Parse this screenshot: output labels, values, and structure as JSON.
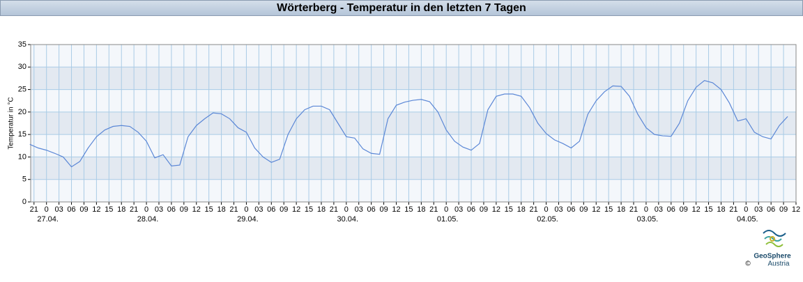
{
  "chart_data": {
    "type": "line",
    "title": "Wörterberg - Temperatur in den letzten 7 Tagen",
    "y_label": "Temperatur in °C",
    "color": "#5b87d6",
    "grid": true,
    "ylim": [
      0,
      35
    ],
    "yticks": [
      0,
      5,
      10,
      15,
      20,
      25,
      30,
      35
    ],
    "xlim": [
      -3.8,
      180
    ],
    "xticks": [
      {
        "value": -3,
        "label": "21"
      },
      0,
      {
        "value": 3,
        "label": "03"
      },
      {
        "value": 6,
        "label": "06"
      },
      {
        "value": 9,
        "label": "09"
      },
      {
        "value": 12,
        "label": "12"
      },
      {
        "value": 15,
        "label": "15"
      },
      {
        "value": 18,
        "label": "18"
      },
      {
        "value": 21,
        "label": "21"
      },
      {
        "value": 24,
        "label": "0"
      },
      {
        "value": 27,
        "label": "03"
      },
      {
        "value": 30,
        "label": "06"
      },
      {
        "value": 33,
        "label": "09"
      },
      {
        "value": 36,
        "label": "12"
      },
      {
        "value": 39,
        "label": "15"
      },
      {
        "value": 42,
        "label": "18"
      },
      {
        "value": 45,
        "label": "21"
      },
      {
        "value": 48,
        "label": "0"
      },
      {
        "value": 51,
        "label": "03"
      },
      {
        "value": 54,
        "label": "06"
      },
      {
        "value": 57,
        "label": "09"
      },
      {
        "value": 60,
        "label": "12"
      },
      {
        "value": 63,
        "label": "15"
      },
      {
        "value": 66,
        "label": "18"
      },
      {
        "value": 69,
        "label": "21"
      },
      {
        "value": 72,
        "label": "0"
      },
      {
        "value": 75,
        "label": "03"
      },
      {
        "value": 78,
        "label": "06"
      },
      {
        "value": 81,
        "label": "09"
      },
      {
        "value": 84,
        "label": "12"
      },
      {
        "value": 87,
        "label": "15"
      },
      {
        "value": 90,
        "label": "18"
      },
      {
        "value": 93,
        "label": "21"
      },
      {
        "value": 96,
        "label": "0"
      },
      {
        "value": 99,
        "label": "03"
      },
      {
        "value": 102,
        "label": "06"
      },
      {
        "value": 105,
        "label": "09"
      },
      {
        "value": 108,
        "label": "12"
      },
      {
        "value": 111,
        "label": "15"
      },
      {
        "value": 114,
        "label": "18"
      },
      {
        "value": 117,
        "label": "21"
      },
      {
        "value": 120,
        "label": "0"
      },
      {
        "value": 123,
        "label": "03"
      },
      {
        "value": 126,
        "label": "06"
      },
      {
        "value": 129,
        "label": "09"
      },
      {
        "value": 132,
        "label": "12"
      },
      {
        "value": 135,
        "label": "15"
      },
      {
        "value": 138,
        "label": "18"
      },
      {
        "value": 141,
        "label": "21"
      },
      {
        "value": 144,
        "label": "0"
      },
      {
        "value": 147,
        "label": "03"
      },
      {
        "value": 150,
        "label": "06"
      },
      {
        "value": 153,
        "label": "09"
      },
      {
        "value": 156,
        "label": "12"
      },
      {
        "value": 159,
        "label": "15"
      },
      {
        "value": 162,
        "label": "18"
      },
      {
        "value": 165,
        "label": "21"
      },
      {
        "value": 168,
        "label": "0"
      },
      {
        "value": 171,
        "label": "03"
      },
      {
        "value": 174,
        "label": "06"
      },
      {
        "value": 177,
        "label": "09"
      },
      {
        "value": 180,
        "label": "12"
      }
    ],
    "date_ticks": [
      {
        "value": 0,
        "label": "27.04."
      },
      {
        "value": 24,
        "label": "28.04."
      },
      {
        "value": 48,
        "label": "29.04."
      },
      {
        "value": 72,
        "label": "30.04."
      },
      {
        "value": 96,
        "label": "01.05."
      },
      {
        "value": 120,
        "label": "02.05."
      },
      {
        "value": 144,
        "label": "03.05."
      },
      {
        "value": 168,
        "label": "04.05."
      }
    ],
    "x": [
      -4,
      -2,
      0,
      2,
      4,
      6,
      8,
      10,
      12,
      14,
      16,
      18,
      20,
      22,
      24,
      26,
      28,
      30,
      32,
      34,
      36,
      38,
      40,
      42,
      44,
      46,
      48,
      50,
      52,
      54,
      56,
      58,
      60,
      62,
      64,
      66,
      68,
      70,
      72,
      74,
      76,
      78,
      80,
      82,
      84,
      86,
      88,
      90,
      92,
      94,
      96,
      98,
      100,
      102,
      104,
      106,
      108,
      110,
      112,
      114,
      116,
      118,
      120,
      122,
      124,
      126,
      128,
      130,
      132,
      134,
      136,
      138,
      140,
      142,
      144,
      146,
      148,
      150,
      152,
      154,
      156,
      158,
      160,
      162,
      164,
      166,
      168,
      170,
      172,
      174,
      176,
      178
    ],
    "values": [
      12.8,
      12.0,
      11.5,
      10.8,
      10.0,
      7.8,
      9.0,
      12.0,
      14.5,
      16.0,
      16.8,
      17.0,
      16.8,
      15.5,
      13.5,
      9.8,
      10.5,
      8.0,
      8.2,
      14.5,
      17.0,
      18.5,
      19.8,
      19.6,
      18.5,
      16.5,
      15.5,
      12.0,
      10.0,
      8.8,
      9.5,
      15.0,
      18.5,
      20.5,
      21.3,
      21.3,
      20.5,
      17.5,
      14.5,
      14.2,
      11.8,
      10.8,
      10.6,
      18.5,
      21.5,
      22.2,
      22.6,
      22.8,
      22.3,
      20.0,
      16.0,
      13.5,
      12.2,
      11.5,
      13.0,
      20.5,
      23.5,
      24.0,
      24.0,
      23.5,
      21.0,
      17.5,
      15.2,
      13.8,
      13.0,
      12.0,
      13.5,
      19.5,
      22.5,
      24.5,
      25.8,
      25.7,
      23.5,
      19.5,
      16.5,
      15.0,
      14.7,
      14.6,
      17.5,
      22.5,
      25.5,
      27.0,
      26.5,
      25.0,
      22.0,
      18.0,
      18.5,
      15.5,
      14.5,
      14.0,
      17.0,
      19.0
    ]
  },
  "logo": {
    "name": "GeoSphere",
    "country": "Austria",
    "copyright": "©"
  }
}
